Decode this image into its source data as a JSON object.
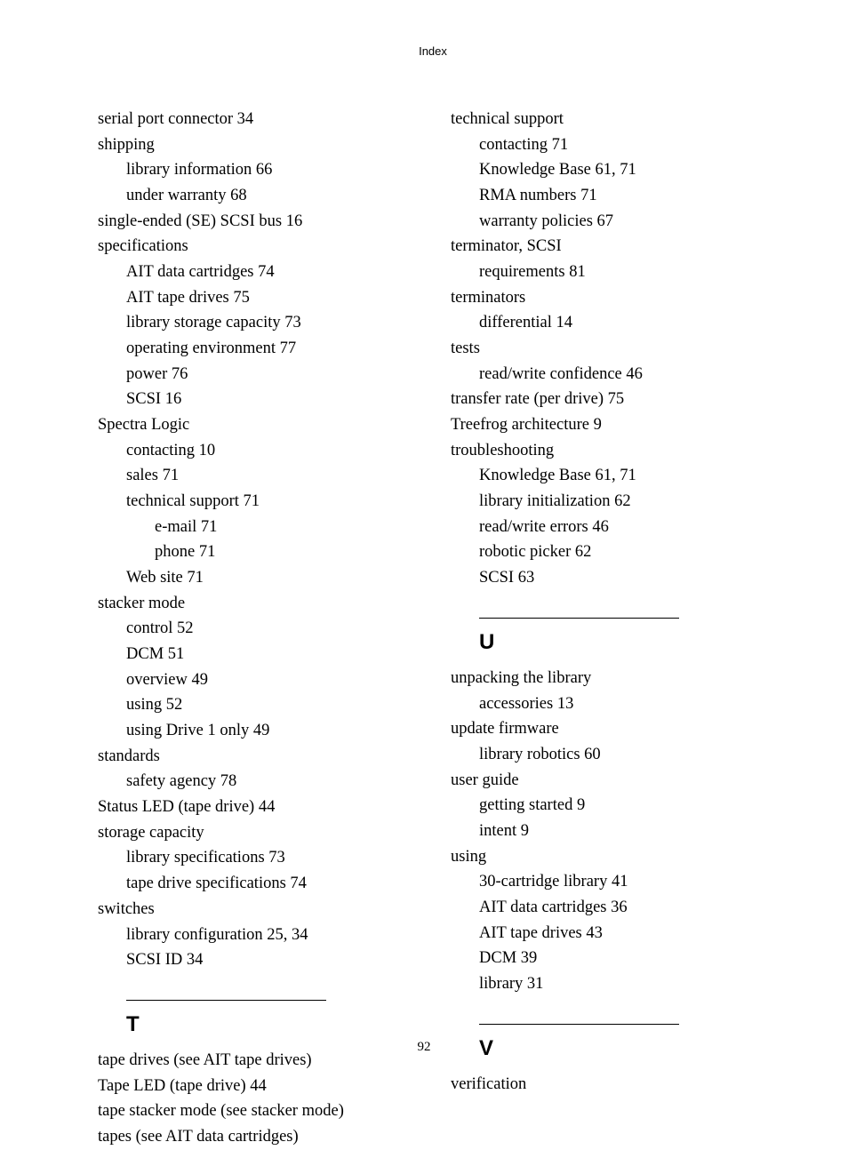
{
  "header": "Index",
  "page_number": "92",
  "left_column": {
    "entries": [
      {
        "text": "serial port connector 34",
        "level": 0
      },
      {
        "text": "shipping",
        "level": 0
      },
      {
        "text": "library information 66",
        "level": 1
      },
      {
        "text": "under warranty 68",
        "level": 1
      },
      {
        "text": "single-ended (SE) SCSI bus 16",
        "level": 0
      },
      {
        "text": "specifications",
        "level": 0
      },
      {
        "text": "AIT data cartridges 74",
        "level": 1
      },
      {
        "text": "AIT tape drives 75",
        "level": 1
      },
      {
        "text": "library storage capacity 73",
        "level": 1
      },
      {
        "text": "operating environment 77",
        "level": 1
      },
      {
        "text": "power 76",
        "level": 1
      },
      {
        "text": "SCSI 16",
        "level": 1
      },
      {
        "text": "Spectra Logic",
        "level": 0
      },
      {
        "text": "contacting 10",
        "level": 1
      },
      {
        "text": "sales 71",
        "level": 1
      },
      {
        "text": "technical support 71",
        "level": 1
      },
      {
        "text": "e-mail 71",
        "level": 2
      },
      {
        "text": "phone 71",
        "level": 2
      },
      {
        "text": "Web site 71",
        "level": 1
      },
      {
        "text": "stacker mode",
        "level": 0
      },
      {
        "text": "control 52",
        "level": 1
      },
      {
        "text": "DCM 51",
        "level": 1
      },
      {
        "text": "overview 49",
        "level": 1
      },
      {
        "text": "using 52",
        "level": 1
      },
      {
        "text": "using Drive 1 only 49",
        "level": 1
      },
      {
        "text": "standards",
        "level": 0
      },
      {
        "text": "safety agency 78",
        "level": 1
      },
      {
        "text": "Status LED (tape drive) 44",
        "level": 0
      },
      {
        "text": "storage capacity",
        "level": 0
      },
      {
        "text": "library specifications 73",
        "level": 1
      },
      {
        "text": "tape drive specifications 74",
        "level": 1
      },
      {
        "text": "switches",
        "level": 0
      },
      {
        "text": "library configuration 25, 34",
        "level": 1
      },
      {
        "text": "SCSI ID 34",
        "level": 1
      }
    ],
    "section_t": {
      "letter": "T",
      "entries": [
        {
          "text": "tape drives (see AIT tape drives)",
          "level": 0
        },
        {
          "text": "Tape LED (tape drive) 44",
          "level": 0
        },
        {
          "text": "tape stacker mode (see stacker mode)",
          "level": 0
        },
        {
          "text": "tapes (see AIT data cartridges)",
          "level": 0
        }
      ]
    }
  },
  "right_column": {
    "entries": [
      {
        "text": "technical support",
        "level": 0
      },
      {
        "text": "contacting 71",
        "level": 1
      },
      {
        "text": "Knowledge Base 61, 71",
        "level": 1
      },
      {
        "text": "RMA numbers 71",
        "level": 1
      },
      {
        "text": "warranty policies 67",
        "level": 1
      },
      {
        "text": "terminator, SCSI",
        "level": 0
      },
      {
        "text": "requirements 81",
        "level": 1
      },
      {
        "text": "terminators",
        "level": 0
      },
      {
        "text": "differential 14",
        "level": 1
      },
      {
        "text": "tests",
        "level": 0
      },
      {
        "text": "read/write confidence 46",
        "level": 1
      },
      {
        "text": "transfer rate (per drive) 75",
        "level": 0
      },
      {
        "text": "Treefrog architecture 9",
        "level": 0
      },
      {
        "text": "troubleshooting",
        "level": 0
      },
      {
        "text": "Knowledge Base 61, 71",
        "level": 1
      },
      {
        "text": "library initialization 62",
        "level": 1
      },
      {
        "text": "read/write errors 46",
        "level": 1
      },
      {
        "text": "robotic picker 62",
        "level": 1
      },
      {
        "text": "SCSI 63",
        "level": 1
      }
    ],
    "section_u": {
      "letter": "U",
      "entries": [
        {
          "text": "unpacking the library",
          "level": 0
        },
        {
          "text": "accessories 13",
          "level": 1
        },
        {
          "text": "update firmware",
          "level": 0
        },
        {
          "text": "library robotics 60",
          "level": 1
        },
        {
          "text": "user guide",
          "level": 0
        },
        {
          "text": "getting started 9",
          "level": 1
        },
        {
          "text": "intent 9",
          "level": 1
        },
        {
          "text": "using",
          "level": 0
        },
        {
          "text": "30-cartridge library 41",
          "level": 1
        },
        {
          "text": "AIT data cartridges 36",
          "level": 1
        },
        {
          "text": "AIT tape drives 43",
          "level": 1
        },
        {
          "text": "DCM 39",
          "level": 1
        },
        {
          "text": "library 31",
          "level": 1
        }
      ]
    },
    "section_v": {
      "letter": "V",
      "entries": [
        {
          "text": "verification",
          "level": 0
        }
      ]
    }
  }
}
